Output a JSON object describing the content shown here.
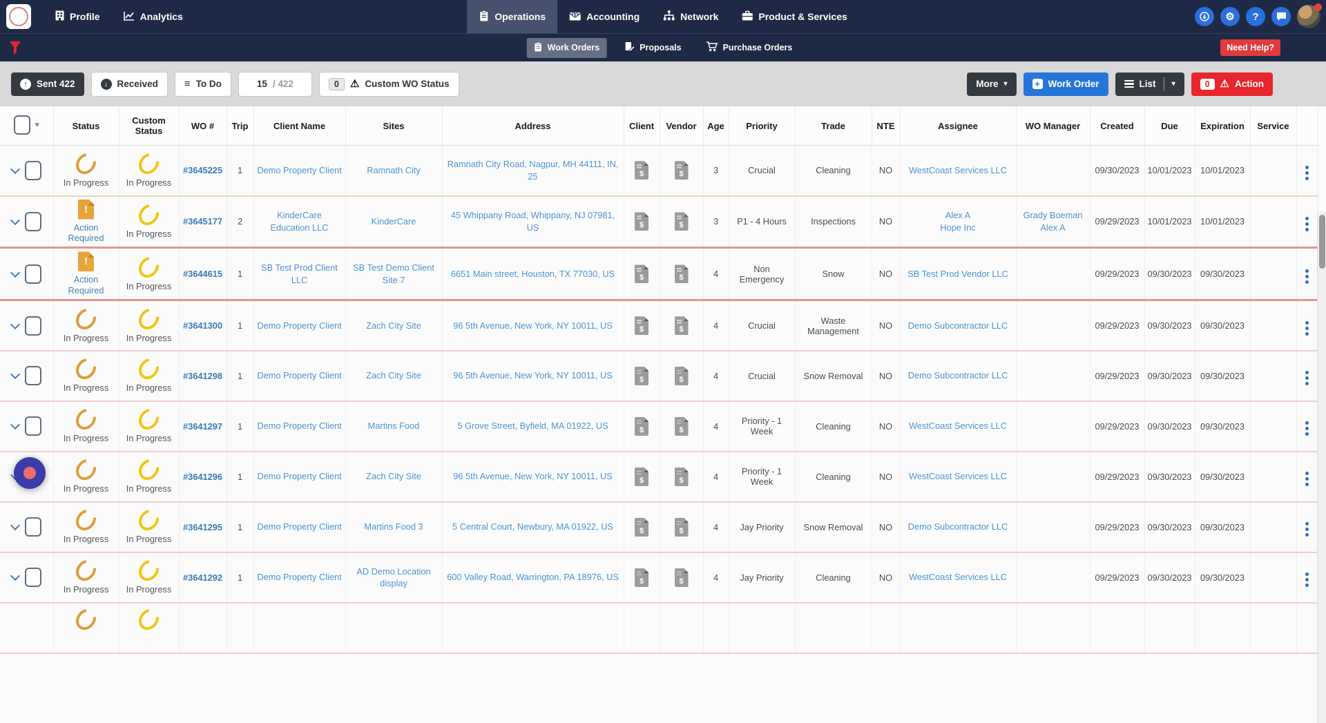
{
  "topnav": {
    "left": [
      {
        "label": "Profile"
      },
      {
        "label": "Analytics"
      }
    ],
    "center": [
      {
        "label": "Operations",
        "active": true
      },
      {
        "label": "Accounting",
        "active": false
      },
      {
        "label": "Network",
        "active": false
      },
      {
        "label": "Product & Services",
        "active": false
      }
    ],
    "subnav": [
      {
        "label": "Work Orders",
        "active": true
      },
      {
        "label": "Proposals",
        "active": false
      },
      {
        "label": "Purchase Orders",
        "active": false
      }
    ],
    "need_help": "Need Help?"
  },
  "toolbar": {
    "sent": "Sent 422",
    "received": "Received",
    "todo": "To Do",
    "shown_count": "15",
    "total_count": "/ 422",
    "custom_count": "0",
    "custom_label": "Custom WO Status",
    "more": "More",
    "work_order": "Work Order",
    "list": "List",
    "action_count": "0",
    "action": "Action"
  },
  "table": {
    "headers": [
      "Status",
      "Custom Status",
      "WO #",
      "Trip",
      "Client Name",
      "Sites",
      "Address",
      "Client",
      "Vendor",
      "Age",
      "Priority",
      "Trade",
      "NTE",
      "Assignee",
      "WO Manager",
      "Created",
      "Due",
      "Expiration",
      "Service"
    ],
    "rows": [
      {
        "status": "In Progress",
        "status_icon": "ring-orange",
        "custom_status": "In Progress",
        "custom_icon": "ring-yellow",
        "wo": "#3645225",
        "trip": "1",
        "client_name": "Demo Property Client",
        "sites": "Ramnath City",
        "address": "Ramnath City Road, Nagpur, MH 44111, IN, 25",
        "age": "3",
        "priority": "Crucial",
        "trade": "Cleaning",
        "nte": "NO",
        "assignee": [
          "WestCoast Services LLC"
        ],
        "wo_manager": [],
        "created": "09/30/2023",
        "due": "10/01/2023",
        "expiration": "10/01/2023",
        "service": "",
        "row_style": "cream"
      },
      {
        "status": "Action Required",
        "status_icon": "doc-alert",
        "custom_status": "In Progress",
        "custom_icon": "ring-yellow",
        "wo": "#3645177",
        "trip": "2",
        "client_name": "KinderCare Education LLC",
        "sites": "KinderCare",
        "address": "45 Whippany Road, Whippany, NJ 07981, US",
        "age": "3",
        "priority": "P1 - 4 Hours",
        "trade": "Inspections",
        "nte": "NO",
        "assignee": [
          "Alex A",
          "Hope Inc"
        ],
        "wo_manager": [
          "Grady Boeman",
          "Alex A"
        ],
        "created": "09/29/2023",
        "due": "10/01/2023",
        "expiration": "10/01/2023",
        "service": "",
        "row_style": "alert"
      },
      {
        "status": "Action Required",
        "status_icon": "doc-alert",
        "custom_status": "In Progress",
        "custom_icon": "ring-yellow",
        "wo": "#3644615",
        "trip": "1",
        "client_name": "SB Test Prod Client LLC",
        "sites": "SB Test Demo Client Site 7",
        "address": "6651 Main street, Houston, TX 77030, US",
        "age": "4",
        "priority": "Non Emergency",
        "trade": "Snow",
        "nte": "NO",
        "assignee": [
          "SB Test Prod Vendor LLC"
        ],
        "wo_manager": [],
        "created": "09/29/2023",
        "due": "09/30/2023",
        "expiration": "09/30/2023",
        "service": "",
        "row_style": "alert"
      },
      {
        "status": "In Progress",
        "status_icon": "ring-orange",
        "custom_status": "In Progress",
        "custom_icon": "ring-yellow",
        "wo": "#3641300",
        "trip": "1",
        "client_name": "Demo Property Client",
        "sites": "Zach City Site",
        "address": "96 5th Avenue, New York, NY 10011, US",
        "age": "4",
        "priority": "Crucial",
        "trade": "Waste Management",
        "nte": "NO",
        "assignee": [
          "Demo Subcontractor LLC"
        ],
        "wo_manager": [],
        "created": "09/29/2023",
        "due": "09/30/2023",
        "expiration": "09/30/2023",
        "service": ""
      },
      {
        "status": "In Progress",
        "status_icon": "ring-orange",
        "custom_status": "In Progress",
        "custom_icon": "ring-yellow",
        "wo": "#3641298",
        "trip": "1",
        "client_name": "Demo Property Client",
        "sites": "Zach City Site",
        "address": "96 5th Avenue, New York, NY 10011, US",
        "age": "4",
        "priority": "Crucial",
        "trade": "Snow Removal",
        "nte": "NO",
        "assignee": [
          "Demo Subcontractor LLC"
        ],
        "wo_manager": [],
        "created": "09/29/2023",
        "due": "09/30/2023",
        "expiration": "09/30/2023",
        "service": ""
      },
      {
        "status": "In Progress",
        "status_icon": "ring-orange",
        "custom_status": "In Progress",
        "custom_icon": "ring-yellow",
        "wo": "#3641297",
        "trip": "1",
        "client_name": "Demo Property Client",
        "sites": "Martins Food",
        "address": "5 Grove Street, Byfield, MA 01922, US",
        "age": "4",
        "priority": "Priority - 1 Week",
        "trade": "Cleaning",
        "nte": "NO",
        "assignee": [
          "WestCoast Services LLC"
        ],
        "wo_manager": [],
        "created": "09/29/2023",
        "due": "09/30/2023",
        "expiration": "09/30/2023",
        "service": ""
      },
      {
        "status": "In Progress",
        "status_icon": "ring-orange",
        "custom_status": "In Progress",
        "custom_icon": "ring-yellow",
        "wo": "#3641296",
        "trip": "1",
        "client_name": "Demo Property Client",
        "sites": "Zach City Site",
        "address": "96 5th Avenue, New York, NY 10011, US",
        "age": "4",
        "priority": "Priority - 1 Week",
        "trade": "Cleaning",
        "nte": "NO",
        "assignee": [
          "WestCoast Services LLC"
        ],
        "wo_manager": [],
        "created": "09/29/2023",
        "due": "09/30/2023",
        "expiration": "09/30/2023",
        "service": ""
      },
      {
        "status": "In Progress",
        "status_icon": "ring-orange",
        "custom_status": "In Progress",
        "custom_icon": "ring-yellow",
        "wo": "#3641295",
        "trip": "1",
        "client_name": "Demo Property Client",
        "sites": "Martins Food 3",
        "address": "5 Central Court, Newbury, MA 01922, US",
        "age": "4",
        "priority": "Jay Priority",
        "trade": "Snow Removal",
        "nte": "NO",
        "assignee": [
          "Demo Subcontractor LLC"
        ],
        "wo_manager": [],
        "created": "09/29/2023",
        "due": "09/30/2023",
        "expiration": "09/30/2023",
        "service": ""
      },
      {
        "status": "In Progress",
        "status_icon": "ring-orange",
        "custom_status": "In Progress",
        "custom_icon": "ring-yellow",
        "wo": "#3641292",
        "trip": "1",
        "client_name": "Demo Property Client",
        "sites": "AD Demo Location display",
        "address": "600 Valley Road, Warrington, PA 18976, US",
        "age": "4",
        "priority": "Jay Priority",
        "trade": "Cleaning",
        "nte": "NO",
        "assignee": [
          "WestCoast Services LLC"
        ],
        "wo_manager": [],
        "created": "09/29/2023",
        "due": "09/30/2023",
        "expiration": "09/30/2023",
        "service": ""
      },
      {
        "status": "",
        "status_icon": "ring-orange",
        "custom_status": "",
        "custom_icon": "ring-yellow",
        "wo": "",
        "trip": "",
        "client_name": "",
        "sites": "",
        "address": "",
        "age": "",
        "priority": "",
        "trade": "",
        "nte": "",
        "assignee": [],
        "wo_manager": [],
        "created": "",
        "due": "",
        "expiration": "",
        "service": "",
        "partial": true
      }
    ]
  },
  "colors": {
    "navbar": "#1e2a45",
    "accent_blue": "#2b6fdb",
    "button_blue": "#2676d9",
    "danger_red": "#e8262d",
    "need_help_red": "#e23b3b",
    "link_blue": "#4e93d2",
    "wo_link_blue": "#3d7ab8",
    "in_progress_orange": "#dd9e3b",
    "custom_status_yellow": "#f2c414",
    "alert_row_border": "#e9958c",
    "row_border_pink": "#f3cdcd",
    "toolbar_gray": "#d9d9d9",
    "fab_indigo": "#3b3caa",
    "fab_inner_coral": "#ee6c6c"
  }
}
